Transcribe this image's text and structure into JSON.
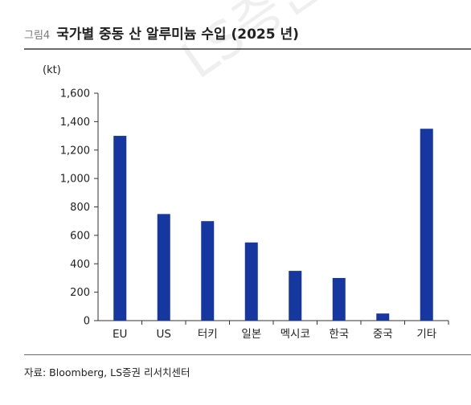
{
  "header": {
    "figure_label": "그림4",
    "title": "국가별 중동 산 알루미늄 수입 (2025 년)"
  },
  "watermark_text": "LS증권 리서치",
  "source_note": "자료: Bloomberg, LS증권 리서치센터",
  "colors": {
    "bar": "#1636a0",
    "axis": "#333333",
    "rule": "#6b6b6b"
  },
  "chart_data": {
    "type": "bar",
    "title": "국가별 중동 산 알루미늄 수입 (2025 년)",
    "ylabel": "(kt)",
    "xlabel": "",
    "categories": [
      "EU",
      "US",
      "터키",
      "일본",
      "멕시코",
      "한국",
      "중국",
      "기타"
    ],
    "values": [
      1300,
      750,
      700,
      550,
      350,
      300,
      50,
      1350
    ],
    "ylim": [
      0,
      1600
    ],
    "yticks": [
      0,
      200,
      400,
      600,
      800,
      1000,
      1200,
      1400,
      1600
    ],
    "ytick_labels": [
      "0",
      "200",
      "400",
      "600",
      "800",
      "1,000",
      "1,200",
      "1,400",
      "1,600"
    ],
    "grid": false,
    "legend": "none"
  }
}
